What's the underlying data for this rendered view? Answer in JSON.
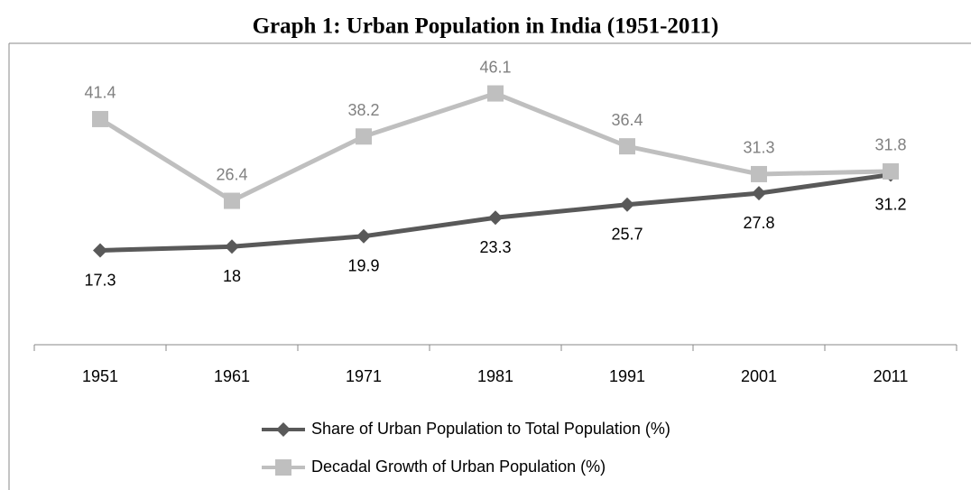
{
  "chart_data": {
    "type": "line",
    "title": "Graph 1: Urban Population in India (1951-2011)",
    "categories": [
      "1951",
      "1961",
      "1971",
      "1981",
      "1991",
      "2001",
      "2011"
    ],
    "series": [
      {
        "name": "Share of Urban Population to Total Population (%)",
        "color": "#595959",
        "marker": "diamond",
        "label_position": "below",
        "values": [
          17.3,
          18,
          19.9,
          23.3,
          25.7,
          27.8,
          31.2
        ]
      },
      {
        "name": "Decadal Growth of Urban Population (%)",
        "color": "#bfbfbf",
        "marker": "square",
        "label_position": "above",
        "values": [
          41.4,
          26.4,
          38.2,
          46.1,
          36.4,
          31.3,
          31.8
        ]
      }
    ],
    "ylim": [
      0,
      50
    ],
    "grid": false,
    "legend": "bottom"
  }
}
